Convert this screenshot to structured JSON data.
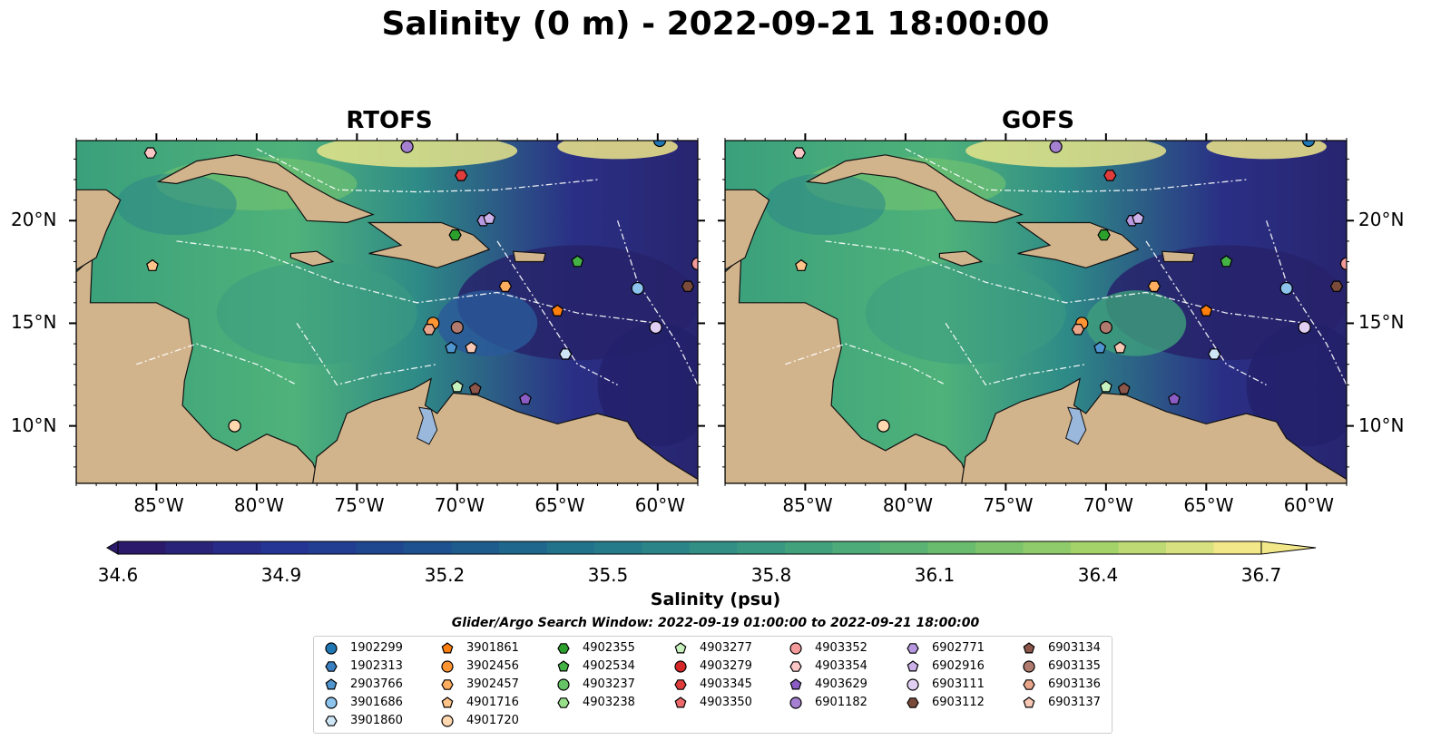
{
  "title": "Salinity (0 m) - 2022-09-21 18:00:00",
  "panels": [
    {
      "title": "RTOFS"
    },
    {
      "title": "GOFS"
    }
  ],
  "axes": {
    "lon_labels": [
      "85°W",
      "80°W",
      "75°W",
      "70°W",
      "65°W",
      "60°W"
    ],
    "lat_labels": [
      "20°N",
      "15°N",
      "10°N"
    ],
    "lon_values": [
      -85,
      -80,
      -75,
      -70,
      -65,
      -60
    ],
    "lat_values": [
      20,
      15,
      10
    ],
    "lon_range": [
      -89,
      -58
    ],
    "lat_range": [
      7.2,
      23.9
    ]
  },
  "colorbar": {
    "ticks": [
      "34.6",
      "34.9",
      "35.2",
      "35.5",
      "35.8",
      "36.1",
      "36.4",
      "36.7"
    ],
    "range": [
      34.6,
      36.7
    ],
    "label": "Salinity (psu)",
    "colors": [
      "#2b1a6b",
      "#253494",
      "#1d4e8f",
      "#1f6e8c",
      "#2e8a87",
      "#44a57c",
      "#6dbd6c",
      "#a6d46a",
      "#f2e88a"
    ]
  },
  "search_window": "Glider/Argo Search Window: 2022-09-19 01:00:00 to 2022-09-21 18:00:00",
  "colors": {
    "land": "#d2b48c",
    "lake": "#9ab8dc",
    "river": "#a4bcd8"
  },
  "legend": [
    {
      "id": "1902299",
      "color": "#1f77b4",
      "marker": "circle"
    },
    {
      "id": "1902313",
      "color": "#3a7fc0",
      "marker": "hexagon"
    },
    {
      "id": "2903766",
      "color": "#4f95d0",
      "marker": "pentagon"
    },
    {
      "id": "3901686",
      "color": "#8cc4ee",
      "marker": "circle"
    },
    {
      "id": "3901860",
      "color": "#cfe6f7",
      "marker": "hexagon"
    },
    {
      "id": "3901861",
      "color": "#ff7f0e",
      "marker": "pentagon"
    },
    {
      "id": "3902456",
      "color": "#ff9433",
      "marker": "circle"
    },
    {
      "id": "3902457",
      "color": "#ffad5e",
      "marker": "hexagon"
    },
    {
      "id": "4901716",
      "color": "#ffc48a",
      "marker": "pentagon"
    },
    {
      "id": "4901720",
      "color": "#ffd8b0",
      "marker": "circle"
    },
    {
      "id": "4902355",
      "color": "#2ca02c",
      "marker": "hexagon"
    },
    {
      "id": "4902534",
      "color": "#44b244",
      "marker": "pentagon"
    },
    {
      "id": "4903237",
      "color": "#66c466",
      "marker": "circle"
    },
    {
      "id": "4903238",
      "color": "#98df8a",
      "marker": "hexagon"
    },
    {
      "id": "4903277",
      "color": "#c7f2be",
      "marker": "pentagon"
    },
    {
      "id": "4903279",
      "color": "#d62728",
      "marker": "circle"
    },
    {
      "id": "4903345",
      "color": "#e03c3c",
      "marker": "hexagon"
    },
    {
      "id": "4903350",
      "color": "#ee6a6a",
      "marker": "pentagon"
    },
    {
      "id": "4903352",
      "color": "#f49a9a",
      "marker": "circle"
    },
    {
      "id": "4903354",
      "color": "#fbc6c6",
      "marker": "hexagon"
    },
    {
      "id": "4903629",
      "color": "#8a5cc4",
      "marker": "pentagon"
    },
    {
      "id": "6901182",
      "color": "#a57fd0",
      "marker": "circle"
    },
    {
      "id": "6902771",
      "color": "#b898e0",
      "marker": "hexagon"
    },
    {
      "id": "6902916",
      "color": "#cdb2ea",
      "marker": "pentagon"
    },
    {
      "id": "6903111",
      "color": "#e2d0f4",
      "marker": "circle"
    },
    {
      "id": "6903112",
      "color": "#7a4b3a",
      "marker": "hexagon"
    },
    {
      "id": "6903134",
      "color": "#8c564b",
      "marker": "pentagon"
    },
    {
      "id": "6903135",
      "color": "#b07a6e",
      "marker": "circle"
    },
    {
      "id": "6903136",
      "color": "#e8a58a",
      "marker": "hexagon"
    },
    {
      "id": "6903137",
      "color": "#f8c8b4",
      "marker": "pentagon"
    }
  ],
  "floats": [
    {
      "id": "1902299",
      "lon": -59.9,
      "lat": 23.9
    },
    {
      "id": "3901686",
      "lon": -61.0,
      "lat": 16.7
    },
    {
      "id": "3901860",
      "lon": -64.6,
      "lat": 13.5
    },
    {
      "id": "2903766",
      "lon": -70.3,
      "lat": 13.8
    },
    {
      "id": "3901861",
      "lon": -65.0,
      "lat": 15.6
    },
    {
      "id": "3902456",
      "lon": -71.2,
      "lat": 15.0
    },
    {
      "id": "3902457",
      "lon": -67.6,
      "lat": 16.8
    },
    {
      "id": "4901716",
      "lon": -85.2,
      "lat": 17.8
    },
    {
      "id": "4901720",
      "lon": -81.1,
      "lat": 10.0
    },
    {
      "id": "4902355",
      "lon": -70.1,
      "lat": 19.3
    },
    {
      "id": "4902534",
      "lon": -64.0,
      "lat": 18.0
    },
    {
      "id": "4903277",
      "lon": -70.0,
      "lat": 11.9
    },
    {
      "id": "4903345",
      "lon": -69.8,
      "lat": 22.2
    },
    {
      "id": "4903352",
      "lon": -58.0,
      "lat": 17.9
    },
    {
      "id": "6901182",
      "lon": -72.5,
      "lat": 23.6
    },
    {
      "id": "6902771",
      "lon": -68.7,
      "lat": 20.0
    },
    {
      "id": "6902916",
      "lon": -68.4,
      "lat": 20.1
    },
    {
      "id": "6903111",
      "lon": -60.1,
      "lat": 14.8
    },
    {
      "id": "6903112",
      "lon": -58.5,
      "lat": 16.8
    },
    {
      "id": "4903629",
      "lon": -66.6,
      "lat": 11.3
    },
    {
      "id": "6903134",
      "lon": -69.1,
      "lat": 11.8
    },
    {
      "id": "6903135",
      "lon": -70.0,
      "lat": 14.8
    },
    {
      "id": "6903136",
      "lon": -71.4,
      "lat": 14.7
    },
    {
      "id": "6903137",
      "lon": -69.3,
      "lat": 13.8
    },
    {
      "id": "4903354",
      "lon": -85.3,
      "lat": 23.3
    }
  ]
}
